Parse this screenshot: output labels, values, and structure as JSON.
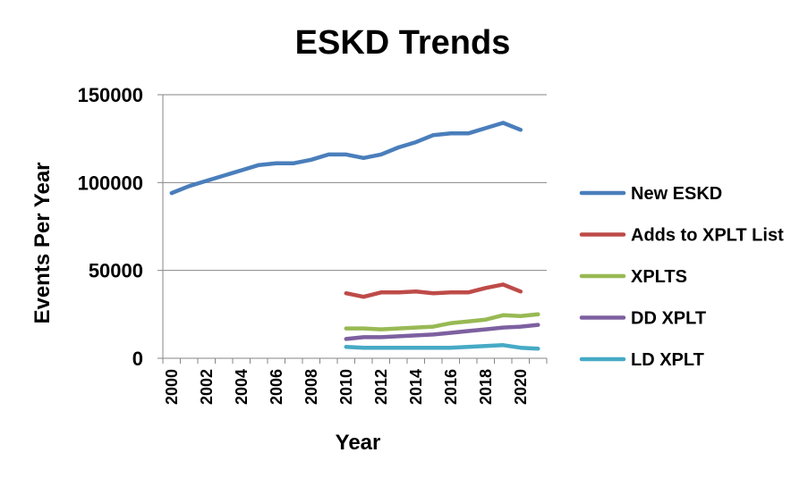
{
  "chart_data": {
    "type": "line",
    "title": "ESKD Trends",
    "xlabel": "Year",
    "ylabel": "Events Per Year",
    "xlim": [
      1999.5,
      2021.5
    ],
    "ylim": [
      0,
      150000
    ],
    "yticks": [
      "0",
      "50000",
      "100000",
      "150000"
    ],
    "ytick_values": [
      0,
      50000,
      100000,
      150000
    ],
    "xticks": [
      "2000",
      "2002",
      "2004",
      "2006",
      "2008",
      "2010",
      "2012",
      "2014",
      "2016",
      "2018",
      "2020"
    ],
    "xtick_values": [
      2000,
      2002,
      2004,
      2006,
      2008,
      2010,
      2012,
      2014,
      2016,
      2018,
      2020
    ],
    "grid": "horizontal",
    "legend_position": "right",
    "series": [
      {
        "name": "New ESKD",
        "color": "#4a7ebb",
        "x": [
          2000,
          2001,
          2002,
          2003,
          2004,
          2005,
          2006,
          2007,
          2008,
          2009,
          2010,
          2011,
          2012,
          2013,
          2014,
          2015,
          2016,
          2017,
          2018,
          2019,
          2020
        ],
        "values": [
          94000,
          98000,
          101000,
          104000,
          107000,
          110000,
          111000,
          111000,
          113000,
          116000,
          116000,
          114000,
          116000,
          120000,
          123000,
          127000,
          128000,
          128000,
          131000,
          134000,
          130000
        ]
      },
      {
        "name": "Adds to XPLT List",
        "color": "#be4b48",
        "x": [
          2010,
          2011,
          2012,
          2013,
          2014,
          2015,
          2016,
          2017,
          2018,
          2019,
          2020
        ],
        "values": [
          37000,
          35000,
          37500,
          37500,
          38000,
          37000,
          37500,
          37500,
          40000,
          42000,
          38000
        ]
      },
      {
        "name": "XPLTS",
        "color": "#98b954",
        "x": [
          2010,
          2011,
          2012,
          2013,
          2014,
          2015,
          2016,
          2017,
          2018,
          2019,
          2020,
          2021
        ],
        "values": [
          17000,
          17000,
          16500,
          17000,
          17500,
          18000,
          20000,
          21000,
          22000,
          24500,
          24000,
          25000
        ]
      },
      {
        "name": "DD XPLT",
        "color": "#7d60a0",
        "x": [
          2010,
          2011,
          2012,
          2013,
          2014,
          2015,
          2016,
          2017,
          2018,
          2019,
          2020,
          2021
        ],
        "values": [
          11000,
          12000,
          12000,
          12500,
          13000,
          13500,
          14500,
          15500,
          16500,
          17500,
          18000,
          19000
        ]
      },
      {
        "name": "LD XPLT",
        "color": "#46aac5",
        "x": [
          2010,
          2011,
          2012,
          2013,
          2014,
          2015,
          2016,
          2017,
          2018,
          2019,
          2020,
          2021
        ],
        "values": [
          6500,
          6000,
          6000,
          6000,
          6000,
          6000,
          6000,
          6500,
          7000,
          7500,
          6000,
          5500
        ]
      }
    ]
  }
}
